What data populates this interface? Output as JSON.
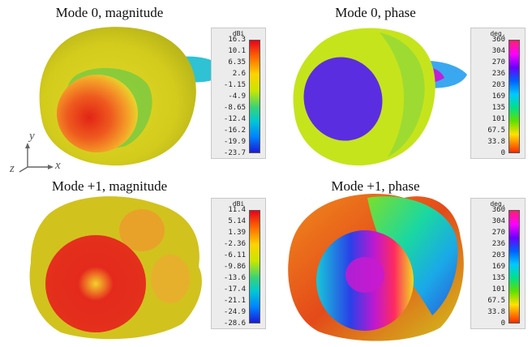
{
  "panels": [
    {
      "title": "Mode 0, magnitude",
      "unit": "dBi",
      "ticks": [
        "16.3",
        "10.1",
        "6.35",
        "2.6",
        "-1.15",
        "-4.9",
        "-8.65",
        "-12.4",
        "-16.2",
        "-19.9",
        "-23.7"
      ]
    },
    {
      "title": "Mode 0, phase",
      "unit": "deg.",
      "ticks": [
        "360",
        "304",
        "270",
        "236",
        "203",
        "169",
        "135",
        "101",
        "67.5",
        "33.8",
        "0"
      ]
    },
    {
      "title": "Mode +1, magnitude",
      "unit": "dBi",
      "ticks": [
        "11.4",
        "5.14",
        "1.39",
        "-2.36",
        "-6.11",
        "-9.86",
        "-13.6",
        "-17.4",
        "-21.1",
        "-24.9",
        "-28.6"
      ]
    },
    {
      "title": "Mode +1, phase",
      "unit": "deg.",
      "ticks": [
        "360",
        "304",
        "270",
        "236",
        "203",
        "169",
        "135",
        "101",
        "67.5",
        "33.8",
        "0"
      ]
    }
  ],
  "axes": {
    "y": "y",
    "x": "x",
    "z": "z"
  },
  "colors": {
    "hot": "#e8231a",
    "warm": "#ffb400",
    "mid": "#c2dc1c",
    "cool": "#2bc8d8",
    "cold": "#5a2ee0"
  }
}
